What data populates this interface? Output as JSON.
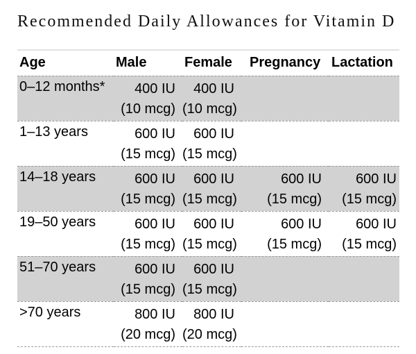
{
  "title": "Recommended Daily Allowances for Vitamin D",
  "colors": {
    "shade": "#d2d2d2",
    "dash": "#9b9b9b",
    "topline": "#e2e2e2",
    "text": "#000000"
  },
  "table": {
    "columns": [
      "Age",
      "Male",
      "Female",
      "Pregnancy",
      "Lactation"
    ],
    "rows": [
      {
        "age": "0–12 months*",
        "shaded": true,
        "cells": [
          [
            "400 IU",
            "(10 mcg)"
          ],
          [
            "400 IU",
            "(10 mcg)"
          ],
          [
            "",
            ""
          ],
          [
            "",
            ""
          ]
        ]
      },
      {
        "age": "1–13 years",
        "shaded": false,
        "cells": [
          [
            "600 IU",
            "(15 mcg)"
          ],
          [
            "600 IU",
            "(15 mcg)"
          ],
          [
            "",
            ""
          ],
          [
            "",
            ""
          ]
        ]
      },
      {
        "age": "14–18 years",
        "shaded": true,
        "cells": [
          [
            "600 IU",
            "(15 mcg)"
          ],
          [
            "600 IU",
            "(15 mcg)"
          ],
          [
            "600 IU",
            "(15 mcg)"
          ],
          [
            "600 IU",
            "(15 mcg)"
          ]
        ]
      },
      {
        "age": "19–50 years",
        "shaded": false,
        "cells": [
          [
            "600 IU",
            "(15 mcg)"
          ],
          [
            "600 IU",
            "(15 mcg)"
          ],
          [
            "600 IU",
            "(15 mcg)"
          ],
          [
            "600 IU",
            "(15 mcg)"
          ]
        ]
      },
      {
        "age": "51–70 years",
        "shaded": true,
        "cells": [
          [
            "600 IU",
            "(15 mcg)"
          ],
          [
            "600 IU",
            "(15 mcg)"
          ],
          [
            "",
            ""
          ],
          [
            "",
            ""
          ]
        ]
      },
      {
        "age": ">70 years",
        "shaded": false,
        "cells": [
          [
            "800 IU",
            "(20 mcg)"
          ],
          [
            "800 IU",
            "(20 mcg)"
          ],
          [
            "",
            ""
          ],
          [
            "",
            ""
          ]
        ]
      }
    ]
  }
}
